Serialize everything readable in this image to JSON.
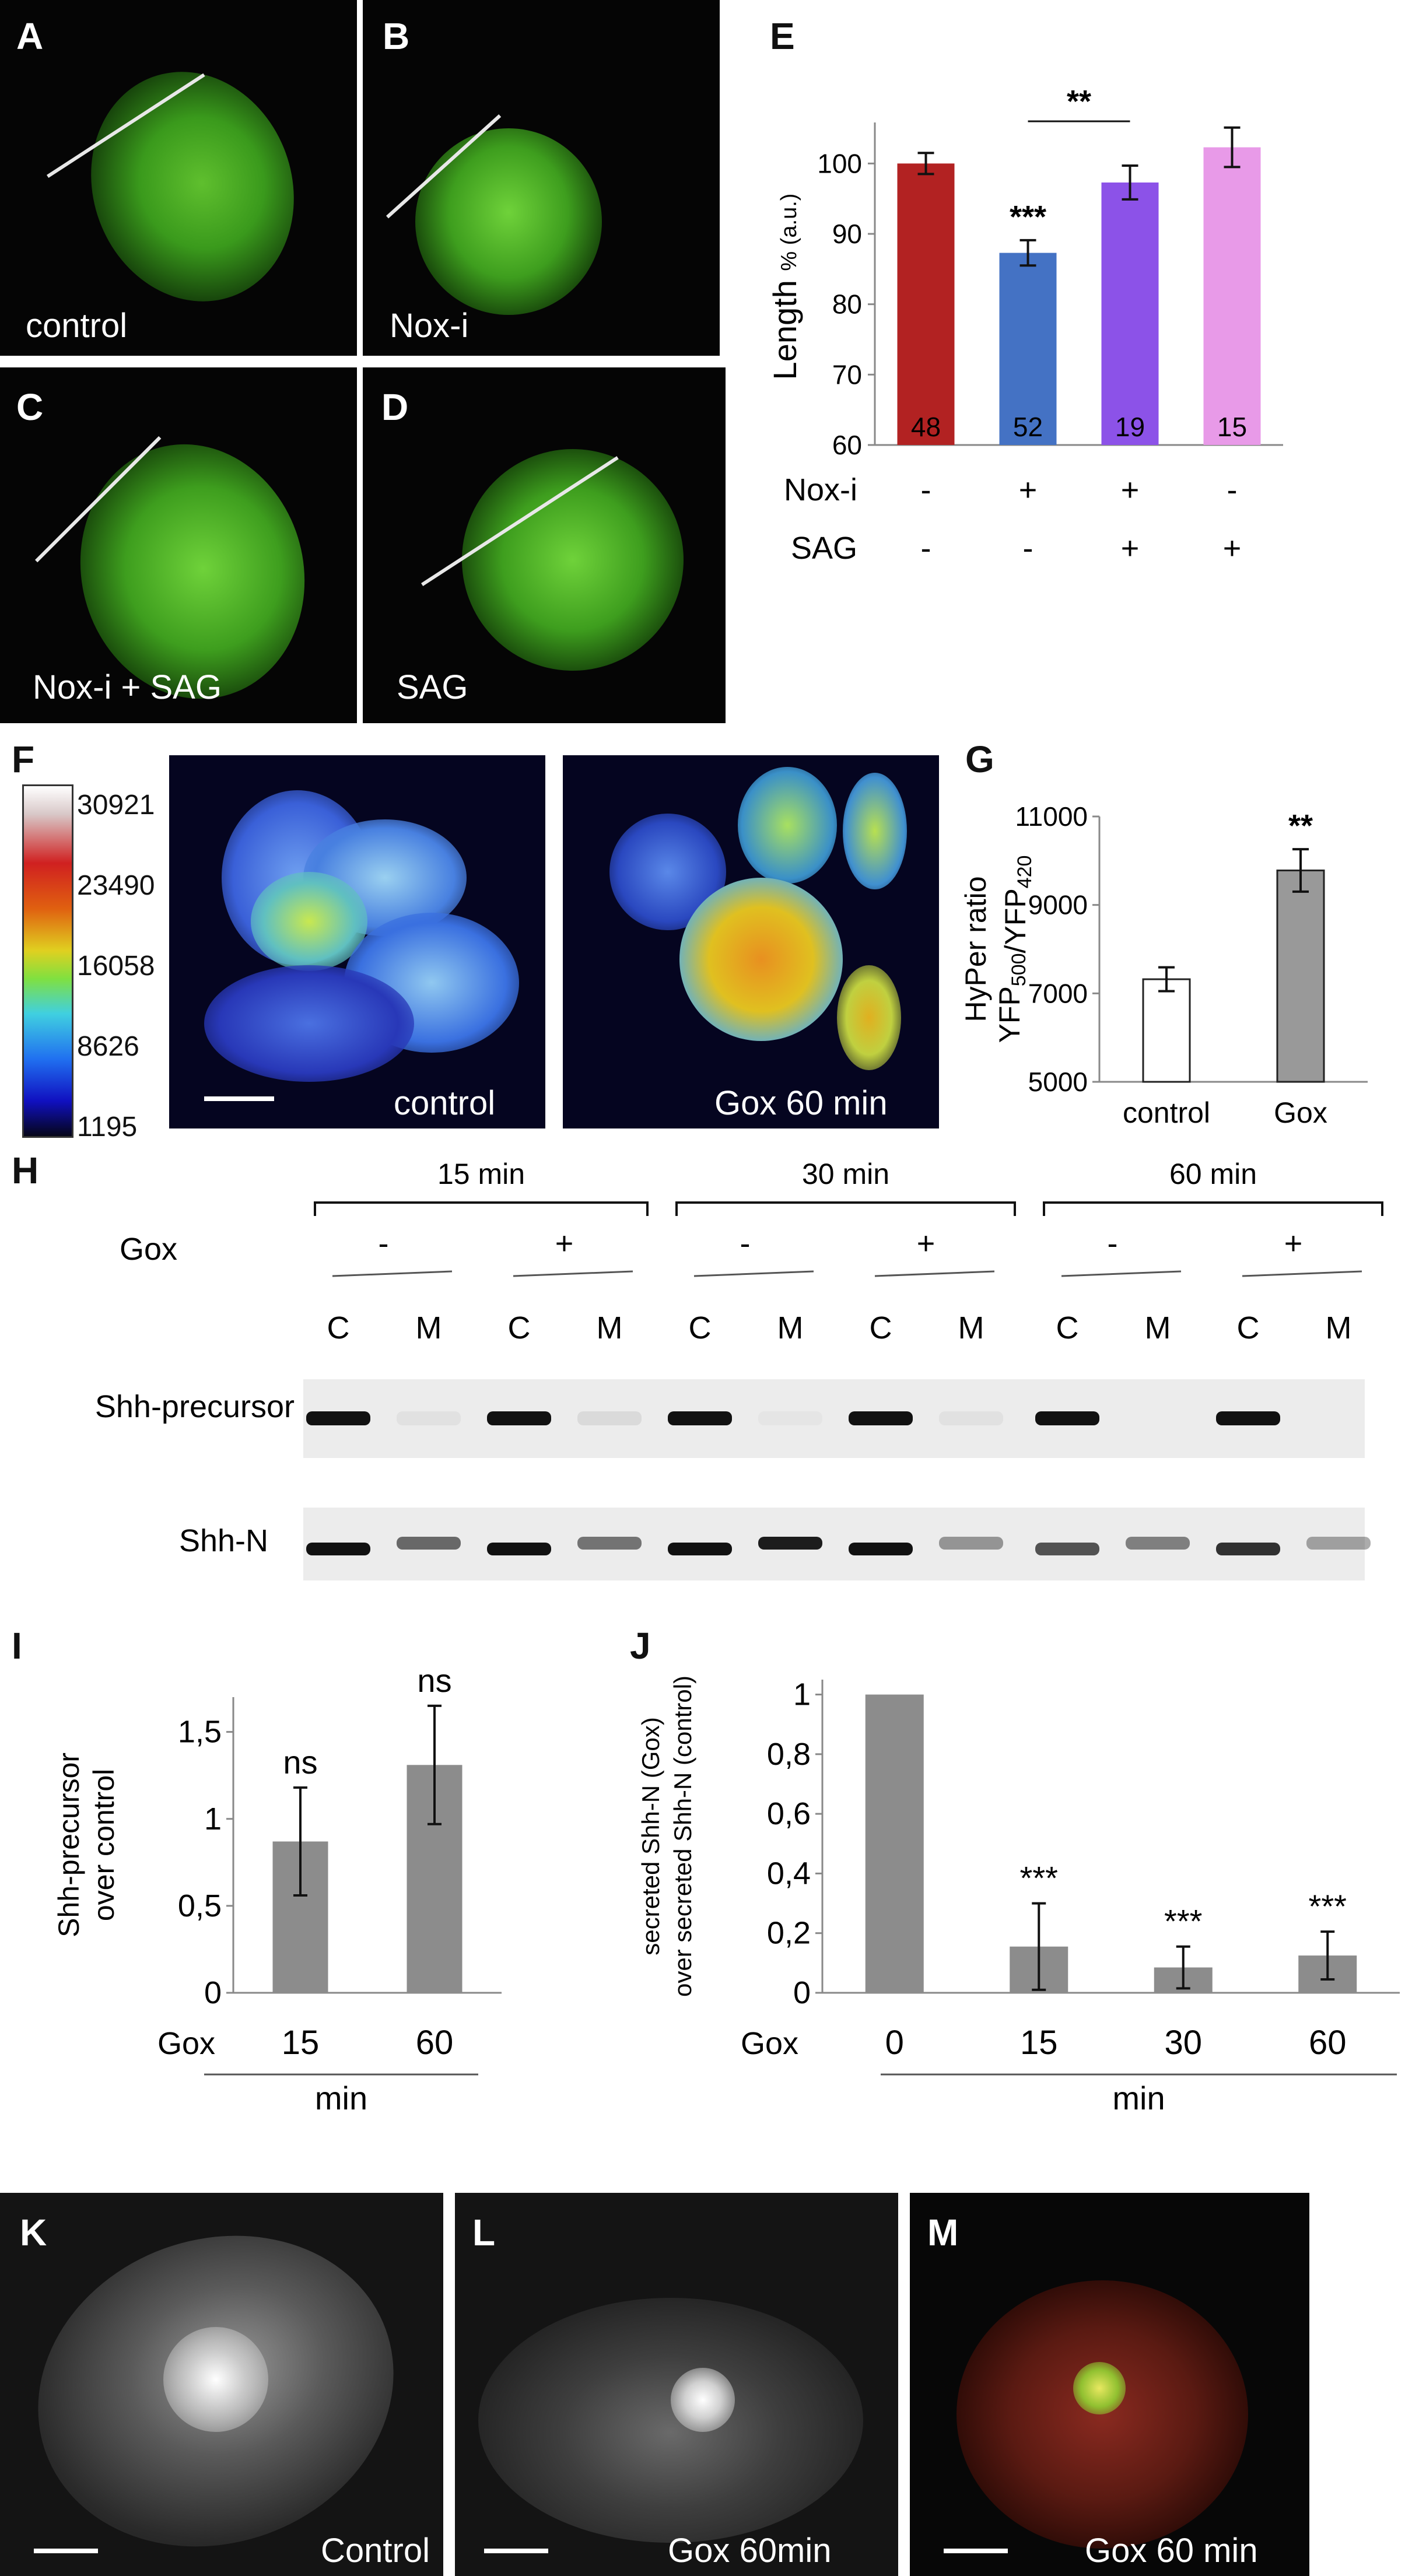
{
  "panels": {
    "A": {
      "label": "A",
      "caption": "control"
    },
    "B": {
      "label": "B",
      "caption": "Nox-i"
    },
    "C": {
      "label": "C",
      "caption": "Nox-i + SAG"
    },
    "D": {
      "label": "D",
      "caption": "SAG"
    },
    "F": {
      "label": "F",
      "caption_left": "control",
      "caption_right": "Gox 60 min",
      "colorscale": {
        "ticks": [
          "30921",
          "23490",
          "16058",
          "8626",
          "1195"
        ]
      }
    },
    "H": {
      "label": "H",
      "time_groups": [
        "15 min",
        "30 min",
        "60 min"
      ],
      "gox_label": "Gox",
      "gox_signs": [
        "-",
        "+",
        "-",
        "+",
        "-",
        "+"
      ],
      "lanes": [
        "C",
        "M",
        "C",
        "M",
        "C",
        "M",
        "C",
        "M",
        "C",
        "M",
        "C",
        "M"
      ],
      "rows": [
        "Shh-precursor",
        "Shh-N"
      ]
    },
    "K": {
      "label": "K",
      "caption": "Control"
    },
    "L": {
      "label": "L",
      "caption": "Gox 60min"
    },
    "M": {
      "label": "M",
      "caption": "Gox 60 min"
    }
  },
  "chart_data": [
    {
      "panel": "E",
      "type": "bar",
      "ylabel": "Length % (a.u.)",
      "ylim": [
        60,
        105
      ],
      "yticks": [
        60,
        70,
        80,
        90,
        100
      ],
      "categories": [
        "1",
        "2",
        "3",
        "4"
      ],
      "values": [
        100,
        87.3,
        97.3,
        102.3
      ],
      "errors": [
        1.5,
        1.8,
        2.4,
        2.8
      ],
      "n_labels": [
        "48",
        "52",
        "19",
        "15"
      ],
      "colors": [
        "#b22222",
        "#4472c4",
        "#8c52e8",
        "#e89ae8"
      ],
      "row_labels": [
        "Nox-i",
        "SAG"
      ],
      "rows": [
        [
          "-",
          "+",
          "+",
          "-"
        ],
        [
          "-",
          "-",
          "+",
          "+"
        ]
      ],
      "annotations": [
        {
          "text": "***",
          "bar": 1
        },
        {
          "text": "**",
          "between": [
            1,
            2
          ]
        }
      ]
    },
    {
      "panel": "G",
      "type": "bar",
      "ylabel": "HyPer ratio YFP500/YFP420",
      "ylim": [
        5000,
        11000
      ],
      "yticks": [
        5000,
        7000,
        9000,
        11000
      ],
      "categories": [
        "control",
        "Gox"
      ],
      "values": [
        7320,
        9780
      ],
      "errors": [
        270,
        480
      ],
      "colors": [
        "#ffffff",
        "#999999"
      ],
      "annotations": [
        {
          "text": "**",
          "bar": 1
        }
      ]
    },
    {
      "panel": "I",
      "type": "bar",
      "ylabel": "Shh-precursor over control",
      "ylim": [
        0,
        1.7
      ],
      "yticks": [
        "0",
        "0,5",
        "1",
        "1,5"
      ],
      "ytick_values": [
        0,
        0.5,
        1,
        1.5
      ],
      "categories": [
        "15",
        "60"
      ],
      "values": [
        0.87,
        1.31
      ],
      "errors": [
        0.31,
        0.34
      ],
      "row_label": "Gox",
      "xlabel": "min",
      "colors": [
        "#8c8c8c"
      ],
      "annotations": [
        {
          "text": "ns",
          "bar": 0
        },
        {
          "text": "ns",
          "bar": 1
        }
      ]
    },
    {
      "panel": "J",
      "type": "bar",
      "ylabel": "secreted Shh-N (Gox) over secreted Shh-N (control)",
      "ylim": [
        0,
        1.05
      ],
      "yticks": [
        "0",
        "0,2",
        "0,4",
        "0,6",
        "0,8",
        "1"
      ],
      "ytick_values": [
        0,
        0.2,
        0.4,
        0.6,
        0.8,
        1
      ],
      "categories": [
        "0",
        "15",
        "30",
        "60"
      ],
      "values": [
        1,
        0.155,
        0.085,
        0.125
      ],
      "errors": [
        0,
        0.145,
        0.07,
        0.08
      ],
      "row_label": "Gox",
      "xlabel": "min",
      "colors": [
        "#8c8c8c"
      ],
      "annotations": [
        {
          "text": "***",
          "bar": 1
        },
        {
          "text": "***",
          "bar": 2
        },
        {
          "text": "***",
          "bar": 3
        }
      ]
    }
  ]
}
